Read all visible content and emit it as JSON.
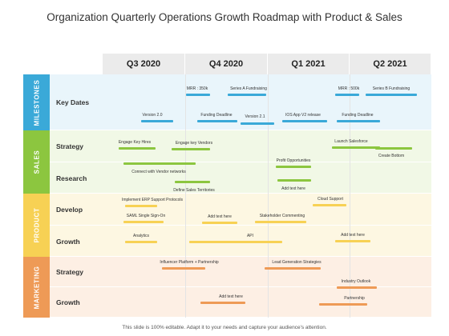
{
  "title": "Organization Quarterly Operations Growth Roadmap with Product & Sales",
  "footer": "This slide is 100% editable. Adapt it to your needs and capture your audience's attention.",
  "quarters": [
    "Q3 2020",
    "Q4 2020",
    "Q1 2021",
    "Q2 2021"
  ],
  "sections": [
    {
      "label": "MILESTONES",
      "color": "#3aa9d8",
      "light": "#e9f5fb",
      "rows": [
        "Key Dates"
      ]
    },
    {
      "label": "SALES",
      "color": "#8cc63f",
      "light": "#f1f8e6",
      "rows": [
        "Strategy",
        "Research"
      ]
    },
    {
      "label": "PRODUCT",
      "color": "#f7d154",
      "light": "#fdf7e2",
      "rows": [
        "Develop",
        "Growth"
      ]
    },
    {
      "label": "MARKETING",
      "color": "#ee9a56",
      "light": "#fdefe4",
      "rows": [
        "Strategy",
        "Growth"
      ]
    }
  ],
  "tasks": [
    "MRR : 350k",
    "Series A Fundraising",
    "MRR : 500k",
    "Series B Fundraising",
    "Version 2.0",
    "Funding Deadline",
    "Version 2.1",
    "IOS App V2 release",
    "Funding Deadline",
    "Engage Key Hires",
    "Engage key Vendors",
    "Launch Salesforce",
    "Create Bottom",
    "Profit Opportunities",
    "Connect with Vendor networks",
    "Define Sales Territories",
    "Add text here",
    "Implement ERP Support Protocols",
    "Cloud Support",
    "SAML Single Sign-On",
    "Add text here",
    "Stakeholder Commenting",
    "Analytics",
    "API",
    "Add text here",
    "Influencer Platform + Partnership",
    "Lead Generation Strategies",
    "Industry Outlook",
    "Add text here",
    "Partnership"
  ]
}
